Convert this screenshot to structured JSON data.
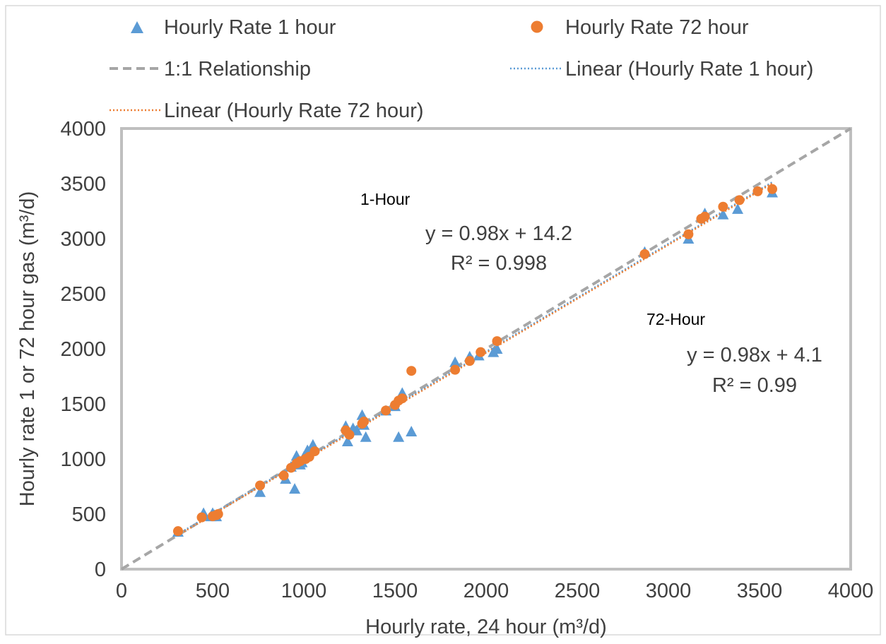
{
  "chart_data": {
    "type": "scatter",
    "xlabel": "Hourly rate, 24 hour (m³/d)",
    "ylabel": "Hourly rate 1 or 72 hour gas (m³/d)",
    "xlim": [
      0,
      4000
    ],
    "ylim": [
      0,
      4000
    ],
    "x_ticks": [
      0,
      500,
      1000,
      1500,
      2000,
      2500,
      3000,
      3500,
      4000
    ],
    "y_ticks": [
      0,
      500,
      1000,
      1500,
      2000,
      2500,
      3000,
      3500,
      4000
    ],
    "grid": false,
    "legend_position": "top",
    "legend": [
      {
        "label": "Hourly Rate 1 hour",
        "marker": "triangle",
        "color": "#5b9bd5"
      },
      {
        "label": "Hourly Rate 72 hour",
        "marker": "circle",
        "color": "#ed7d31"
      },
      {
        "label": "1:1 Relationship",
        "marker": "dashed-line",
        "color": "#a6a6a6"
      },
      {
        "label": "Linear (Hourly Rate 1 hour)",
        "marker": "dotted-line",
        "color": "#5b9bd5"
      },
      {
        "label": "Linear (Hourly Rate 72 hour)",
        "marker": "dotted-line",
        "color": "#ed7d31"
      }
    ],
    "series": [
      {
        "name": "Hourly Rate 1 hour",
        "color": "#5b9bd5",
        "marker": "triangle",
        "points": [
          [
            310,
            340
          ],
          [
            450,
            510
          ],
          [
            490,
            480
          ],
          [
            500,
            510
          ],
          [
            510,
            490
          ],
          [
            520,
            480
          ],
          [
            760,
            700
          ],
          [
            900,
            820
          ],
          [
            930,
            930
          ],
          [
            950,
            730
          ],
          [
            960,
            1030
          ],
          [
            980,
            950
          ],
          [
            990,
            970
          ],
          [
            1000,
            1020
          ],
          [
            1020,
            1080
          ],
          [
            1050,
            1130
          ],
          [
            1230,
            1300
          ],
          [
            1240,
            1160
          ],
          [
            1270,
            1280
          ],
          [
            1290,
            1260
          ],
          [
            1320,
            1400
          ],
          [
            1330,
            1310
          ],
          [
            1340,
            1200
          ],
          [
            1450,
            1440
          ],
          [
            1500,
            1480
          ],
          [
            1520,
            1200
          ],
          [
            1540,
            1600
          ],
          [
            1590,
            1250
          ],
          [
            1830,
            1880
          ],
          [
            1910,
            1930
          ],
          [
            1960,
            1940
          ],
          [
            2040,
            1970
          ],
          [
            2060,
            2000
          ],
          [
            2870,
            2880
          ],
          [
            3110,
            3000
          ],
          [
            3200,
            3230
          ],
          [
            3300,
            3220
          ],
          [
            3380,
            3270
          ],
          [
            3570,
            3420
          ]
        ]
      },
      {
        "name": "Hourly Rate 72 hour",
        "color": "#ed7d31",
        "marker": "circle",
        "points": [
          [
            310,
            345
          ],
          [
            440,
            470
          ],
          [
            500,
            480
          ],
          [
            520,
            490
          ],
          [
            530,
            500
          ],
          [
            760,
            760
          ],
          [
            890,
            850
          ],
          [
            930,
            920
          ],
          [
            960,
            960
          ],
          [
            980,
            980
          ],
          [
            1010,
            1000
          ],
          [
            1030,
            1020
          ],
          [
            1060,
            1070
          ],
          [
            1230,
            1260
          ],
          [
            1250,
            1220
          ],
          [
            1320,
            1320
          ],
          [
            1330,
            1340
          ],
          [
            1450,
            1440
          ],
          [
            1500,
            1490
          ],
          [
            1520,
            1530
          ],
          [
            1540,
            1550
          ],
          [
            1590,
            1800
          ],
          [
            1830,
            1810
          ],
          [
            1910,
            1890
          ],
          [
            1970,
            1970
          ],
          [
            2060,
            2070
          ],
          [
            2870,
            2860
          ],
          [
            3110,
            3040
          ],
          [
            3180,
            3180
          ],
          [
            3200,
            3200
          ],
          [
            3300,
            3290
          ],
          [
            3390,
            3350
          ],
          [
            3490,
            3430
          ],
          [
            3570,
            3450
          ]
        ]
      }
    ],
    "reference_line": {
      "name": "1:1 Relationship",
      "from": [
        0,
        0
      ],
      "to": [
        4000,
        4000
      ]
    },
    "trendlines": [
      {
        "name": "Linear (Hourly Rate 1 hour)",
        "slope": 0.98,
        "intercept": 14.2,
        "x_range": [
          310,
          3570
        ]
      },
      {
        "name": "Linear (Hourly Rate 72 hour)",
        "slope": 0.98,
        "intercept": 4.1,
        "x_range": [
          310,
          3570
        ]
      }
    ],
    "annotations": {
      "one_hour_title": "1-Hour",
      "one_hour_eq": "y = 0.98x + 14.2",
      "one_hour_r2": "R² = 0.998",
      "seventy_two_title": "72-Hour",
      "seventy_two_eq": "y = 0.98x + 4.1",
      "seventy_two_r2": "R² = 0.99"
    }
  }
}
